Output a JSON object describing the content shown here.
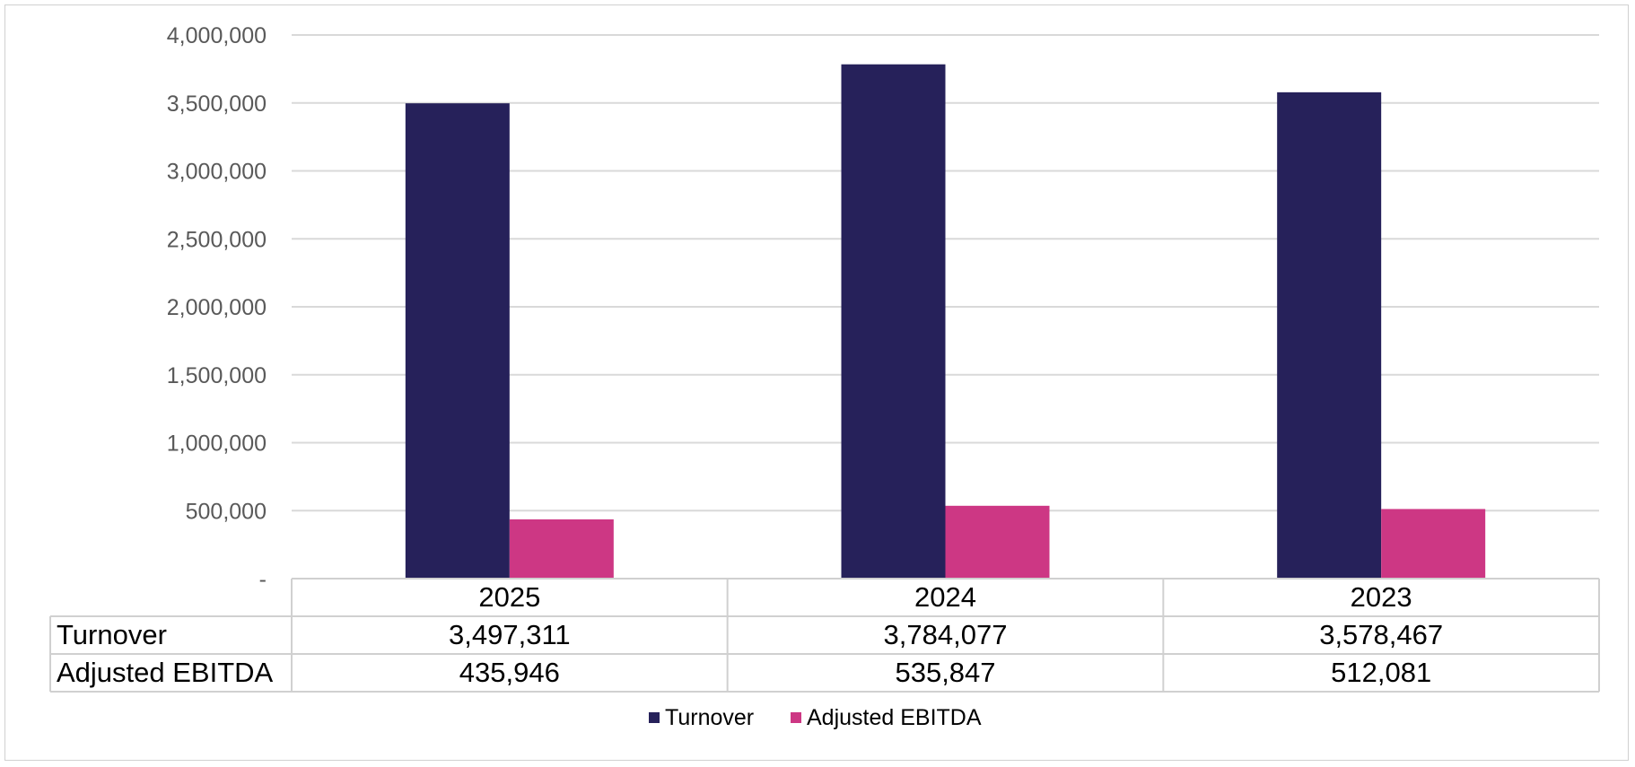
{
  "chart_data": {
    "type": "bar",
    "categories": [
      "2025",
      "2024",
      "2023"
    ],
    "series": [
      {
        "name": "Turnover",
        "values": [
          3497311,
          3784077,
          3578467
        ],
        "color": "#26215a"
      },
      {
        "name": "Adjusted EBITDA",
        "values": [
          435946,
          535847,
          512081
        ],
        "color": "#cd3784"
      }
    ],
    "ylim": [
      0,
      4000000
    ],
    "yticks": [
      0,
      500000,
      1000000,
      1500000,
      2000000,
      2500000,
      3000000,
      3500000,
      4000000
    ],
    "ytick_labels": [
      "-",
      "500,000",
      "1,000,000",
      "1,500,000",
      "2,000,000",
      "2,500,000",
      "3,000,000",
      "3,500,000",
      "4,000,000"
    ],
    "grid": true,
    "legend": "bottom",
    "data_table": {
      "rows": [
        {
          "label": "Turnover",
          "cells": [
            "3,497,311",
            "3,784,077",
            "3,578,467"
          ]
        },
        {
          "label": "Adjusted EBITDA",
          "cells": [
            "435,946",
            "535,847",
            "512,081"
          ]
        }
      ]
    }
  }
}
